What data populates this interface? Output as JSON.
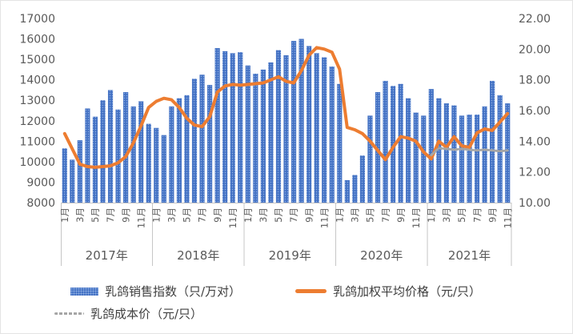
{
  "chart_data": {
    "type": "combo-bar-line",
    "x_axis": {
      "years": [
        {
          "label": "2017年",
          "months": 12
        },
        {
          "label": "2018年",
          "months": 12
        },
        {
          "label": "2019年",
          "months": 12
        },
        {
          "label": "2020年",
          "months": 12
        },
        {
          "label": "2021年",
          "months": 11
        }
      ],
      "month_tick_labels": [
        "1月",
        "3月",
        "5月",
        "7月",
        "9月",
        "11月"
      ],
      "month_tick_every": 2
    },
    "left_axis": {
      "min": 8000,
      "max": 17000,
      "step": 1000,
      "tick_labels": [
        "8000",
        "9000",
        "10000",
        "11000",
        "12000",
        "13000",
        "14000",
        "15000",
        "16000",
        "17000"
      ]
    },
    "right_axis": {
      "min": 10,
      "max": 22,
      "step": 2,
      "tick_labels": [
        "10.00",
        "12.00",
        "14.00",
        "16.00",
        "18.00",
        "20.00",
        "22.00"
      ]
    },
    "grid": false,
    "legend_position": "bottom",
    "series": [
      {
        "name": "乳鸽销售指数（只/万对）",
        "type": "bar",
        "axis": "left",
        "color": "#4472C4",
        "values": [
          10650,
          10100,
          11050,
          12600,
          12200,
          13000,
          13500,
          12550,
          13400,
          12700,
          12950,
          11850,
          11650,
          11300,
          12700,
          13100,
          13250,
          14050,
          14250,
          13750,
          15550,
          15400,
          15300,
          15350,
          14700,
          14300,
          14500,
          14850,
          15450,
          15200,
          15900,
          16000,
          15650,
          15300,
          15100,
          14650,
          13800,
          9100,
          9350,
          10300,
          12250,
          13400,
          13950,
          13700,
          13800,
          13100,
          12400,
          12250,
          13550,
          13100,
          12850,
          12750,
          12250,
          12300,
          12300,
          12700,
          13950,
          13250,
          12850
        ]
      },
      {
        "name": "乳鸽加权平均价格（元/只）",
        "type": "line",
        "axis": "right",
        "color": "#ED7D31",
        "style": "solid",
        "values": [
          14.5,
          13.5,
          12.5,
          12.35,
          12.3,
          12.35,
          12.4,
          12.6,
          13.0,
          13.9,
          15.0,
          16.2,
          16.6,
          16.8,
          16.7,
          16.2,
          15.5,
          15.05,
          14.95,
          15.6,
          17.2,
          17.6,
          17.7,
          17.65,
          17.7,
          17.75,
          17.8,
          18.0,
          18.2,
          17.9,
          17.8,
          18.6,
          19.6,
          20.1,
          20.0,
          19.8,
          18.7,
          14.9,
          14.75,
          14.5,
          14.0,
          13.4,
          12.8,
          13.6,
          14.3,
          14.2,
          14.0,
          13.3,
          12.85,
          14.0,
          13.6,
          14.3,
          13.7,
          13.6,
          14.55,
          14.8,
          14.7,
          15.25,
          15.8
        ]
      },
      {
        "name": "乳鸽成本价（元/只）",
        "type": "line",
        "axis": "right",
        "color": "#A6A6A6",
        "style": "dashed",
        "values": [
          null,
          null,
          null,
          null,
          null,
          null,
          null,
          null,
          null,
          null,
          null,
          null,
          null,
          null,
          null,
          null,
          null,
          null,
          null,
          null,
          null,
          null,
          null,
          null,
          null,
          null,
          null,
          null,
          null,
          null,
          null,
          null,
          null,
          null,
          null,
          null,
          null,
          null,
          null,
          null,
          null,
          null,
          null,
          null,
          null,
          null,
          null,
          null,
          13.1,
          13.55,
          13.5,
          13.45,
          13.5,
          13.45,
          13.4,
          13.45,
          13.4,
          13.35,
          13.4
        ]
      }
    ]
  },
  "legend": {
    "items": [
      {
        "label": "乳鸽销售指数（只/万对）",
        "swatch": "bar"
      },
      {
        "label": "乳鸽加权平均价格（元/只）",
        "swatch": "line"
      },
      {
        "label": "乳鸽成本价（元/只）",
        "swatch": "dashed-line"
      }
    ]
  },
  "colors": {
    "bar": "#4472C4",
    "price_line": "#ED7D31",
    "cost_line": "#A6A6A6",
    "axis_text": "#595959",
    "axis_line": "#c6c6c6"
  }
}
